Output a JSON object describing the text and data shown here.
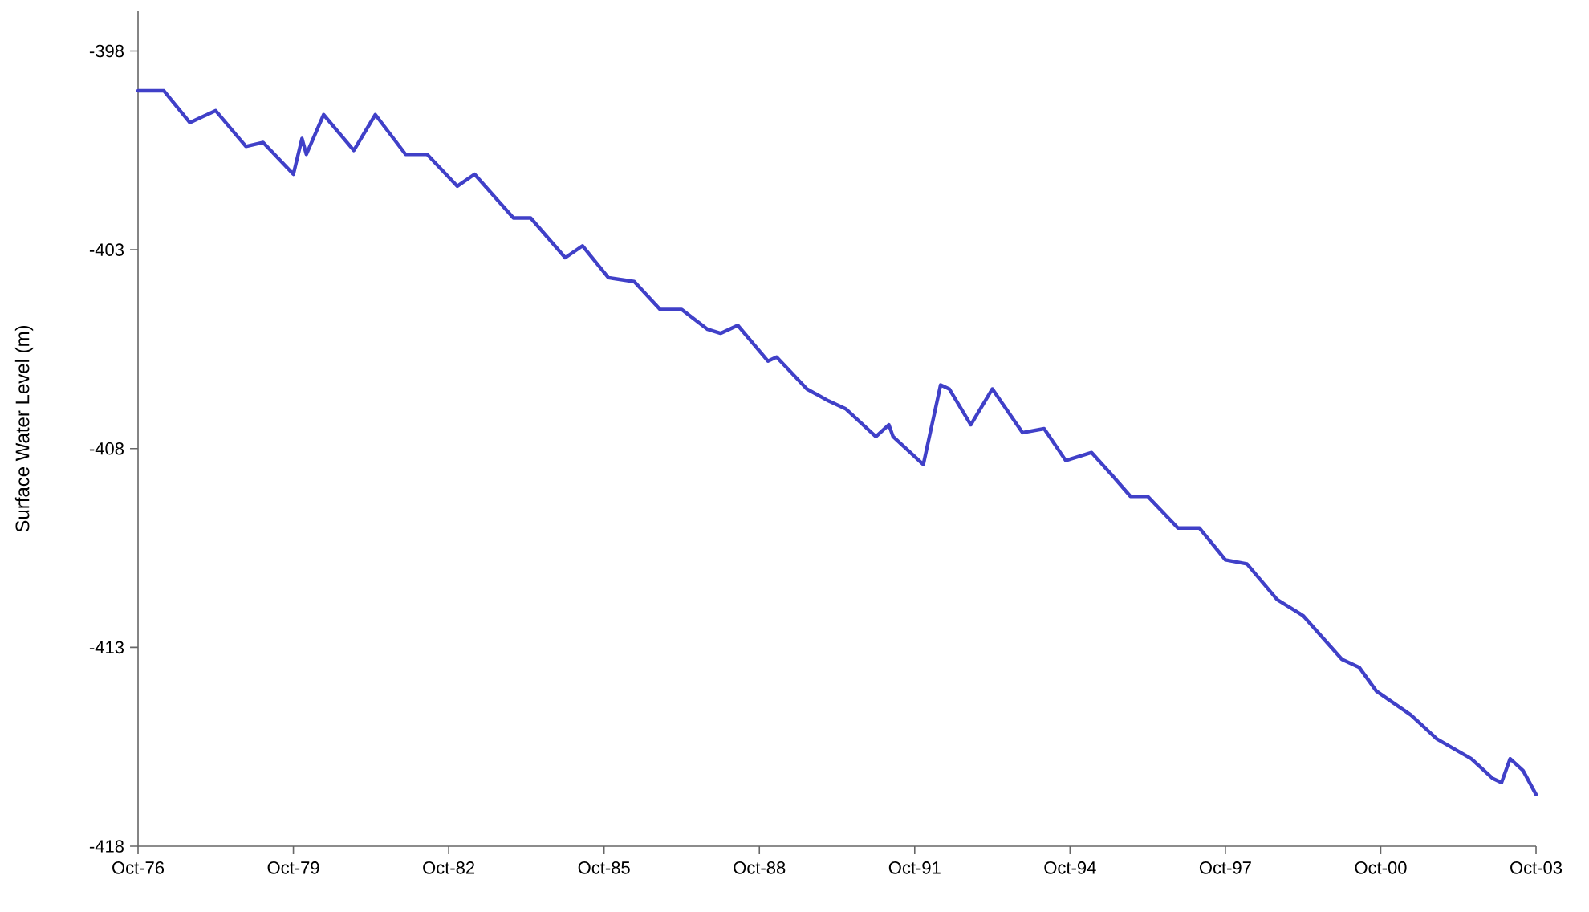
{
  "chart_data": {
    "type": "line",
    "ylabel": "Surface Water Level (m)",
    "x": [
      "1976-10",
      "1977-04",
      "1977-10",
      "1978-04",
      "1978-11",
      "1979-03",
      "1979-10",
      "1979-12",
      "1980-01",
      "1980-05",
      "1980-12",
      "1981-05",
      "1981-12",
      "1982-05",
      "1982-12",
      "1983-04",
      "1984-01",
      "1984-05",
      "1985-01",
      "1985-05",
      "1985-11",
      "1986-05",
      "1986-11",
      "1987-04",
      "1987-10",
      "1988-01",
      "1988-05",
      "1988-12",
      "1989-02",
      "1989-09",
      "1990-02",
      "1990-06",
      "1991-01",
      "1991-04",
      "1991-05",
      "1991-12",
      "1992-04",
      "1992-06",
      "1992-11",
      "1993-04",
      "1993-11",
      "1994-04",
      "1994-09",
      "1995-03",
      "1995-08",
      "1995-12",
      "1996-04",
      "1996-11",
      "1997-04",
      "1997-10",
      "1998-03",
      "1998-10",
      "1999-04",
      "2000-01",
      "2000-05",
      "2000-09",
      "2001-05",
      "2001-11",
      "2002-07",
      "2002-12",
      "2003-02",
      "2003-04",
      "2003-07",
      "2003-10"
    ],
    "series": [
      {
        "color": "#4040c8",
        "values": [
          -399.0,
          -399.0,
          -399.8,
          -399.5,
          -400.4,
          -400.3,
          -401.1,
          -400.2,
          -400.6,
          -399.6,
          -400.5,
          -399.6,
          -400.6,
          -400.6,
          -401.4,
          -401.1,
          -402.2,
          -402.2,
          -403.2,
          -402.9,
          -403.7,
          -403.8,
          -404.5,
          -404.5,
          -405.0,
          -405.1,
          -404.9,
          -405.8,
          -405.7,
          -406.5,
          -406.8,
          -407.0,
          -407.7,
          -407.4,
          -407.7,
          -408.4,
          -406.4,
          -406.5,
          -407.4,
          -406.5,
          -407.6,
          -407.5,
          -408.3,
          -408.1,
          -408.7,
          -409.2,
          -409.2,
          -410.0,
          -410.0,
          -410.8,
          -410.9,
          -411.8,
          -412.2,
          -413.3,
          -413.5,
          -414.1,
          -414.7,
          -415.3,
          -415.8,
          -416.3,
          -416.4,
          -415.8,
          -416.1,
          -416.7
        ]
      }
    ],
    "xlim": [
      "1976-10",
      "2003-10"
    ],
    "xticks": [
      {
        "value": "1976-10",
        "label": "Oct-76"
      },
      {
        "value": "1979-10",
        "label": "Oct-79"
      },
      {
        "value": "1982-10",
        "label": "Oct-82"
      },
      {
        "value": "1985-10",
        "label": "Oct-85"
      },
      {
        "value": "1988-10",
        "label": "Oct-88"
      },
      {
        "value": "1991-10",
        "label": "Oct-91"
      },
      {
        "value": "1994-10",
        "label": "Oct-94"
      },
      {
        "value": "1997-10",
        "label": "Oct-97"
      },
      {
        "value": "2000-10",
        "label": "Oct-00"
      },
      {
        "value": "2003-10",
        "label": "Oct-03"
      }
    ],
    "ylim": [
      -418,
      -397
    ],
    "yticks": [
      -398,
      -403,
      -408,
      -413,
      -418
    ],
    "grid": false,
    "legend": false,
    "marker": "none",
    "line_style": "solid"
  }
}
